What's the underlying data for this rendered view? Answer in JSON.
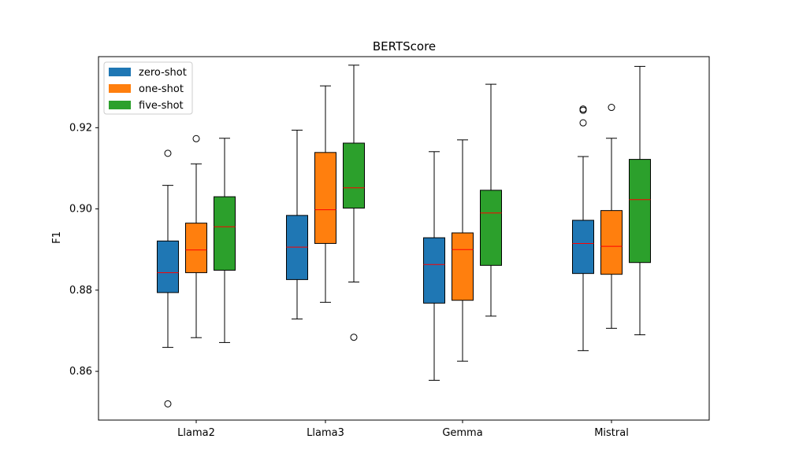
{
  "chart_data": {
    "type": "box",
    "title": "BERTScore",
    "xlabel": "",
    "ylabel": "F1",
    "ylim": [
      0.848,
      0.9375
    ],
    "yticks": [
      0.86,
      0.88,
      0.9,
      0.92
    ],
    "ytick_labels": [
      "0.86",
      "0.88",
      "0.90",
      "0.92"
    ],
    "categories": [
      "Llama2",
      "Llama3",
      "Gemma",
      "Mistral"
    ],
    "legend_position": "top-left",
    "median_color": "#ff0000",
    "series": [
      {
        "name": "zero-shot",
        "color": "#1f77b4",
        "boxes": [
          {
            "whislo": 0.8659,
            "q1": 0.8794,
            "med": 0.8843,
            "q3": 0.8921,
            "whishi": 0.9058,
            "fliers": [
              0.9137,
              0.852
            ]
          },
          {
            "whislo": 0.8729,
            "q1": 0.8826,
            "med": 0.8906,
            "q3": 0.8984,
            "whishi": 0.9194,
            "fliers": []
          },
          {
            "whislo": 0.8578,
            "q1": 0.8768,
            "med": 0.8863,
            "q3": 0.8929,
            "whishi": 0.9141,
            "fliers": []
          },
          {
            "whislo": 0.8651,
            "q1": 0.8841,
            "med": 0.8915,
            "q3": 0.8972,
            "whishi": 0.9129,
            "fliers": [
              0.9246,
              0.9243,
              0.9212
            ]
          }
        ]
      },
      {
        "name": "one-shot",
        "color": "#ff7f0e",
        "boxes": [
          {
            "whislo": 0.8683,
            "q1": 0.8843,
            "med": 0.8899,
            "q3": 0.8965,
            "whishi": 0.9111,
            "fliers": [
              0.9173
            ]
          },
          {
            "whislo": 0.877,
            "q1": 0.8915,
            "med": 0.8998,
            "q3": 0.9139,
            "whishi": 0.9303,
            "fliers": []
          },
          {
            "whislo": 0.8625,
            "q1": 0.8775,
            "med": 0.89,
            "q3": 0.8941,
            "whishi": 0.917,
            "fliers": []
          },
          {
            "whislo": 0.8706,
            "q1": 0.8839,
            "med": 0.8908,
            "q3": 0.8996,
            "whishi": 0.9174,
            "fliers": [
              0.925
            ]
          }
        ]
      },
      {
        "name": "five-shot",
        "color": "#2ca02c",
        "boxes": [
          {
            "whislo": 0.8671,
            "q1": 0.8849,
            "med": 0.8956,
            "q3": 0.903,
            "whishi": 0.9174,
            "fliers": []
          },
          {
            "whislo": 0.882,
            "q1": 0.9002,
            "med": 0.9052,
            "q3": 0.9162,
            "whishi": 0.9354,
            "fliers": [
              0.8684
            ]
          },
          {
            "whislo": 0.8736,
            "q1": 0.8861,
            "med": 0.899,
            "q3": 0.9046,
            "whishi": 0.9307,
            "fliers": []
          },
          {
            "whislo": 0.869,
            "q1": 0.8868,
            "med": 0.9023,
            "q3": 0.9122,
            "whishi": 0.9351,
            "fliers": []
          }
        ]
      }
    ]
  }
}
